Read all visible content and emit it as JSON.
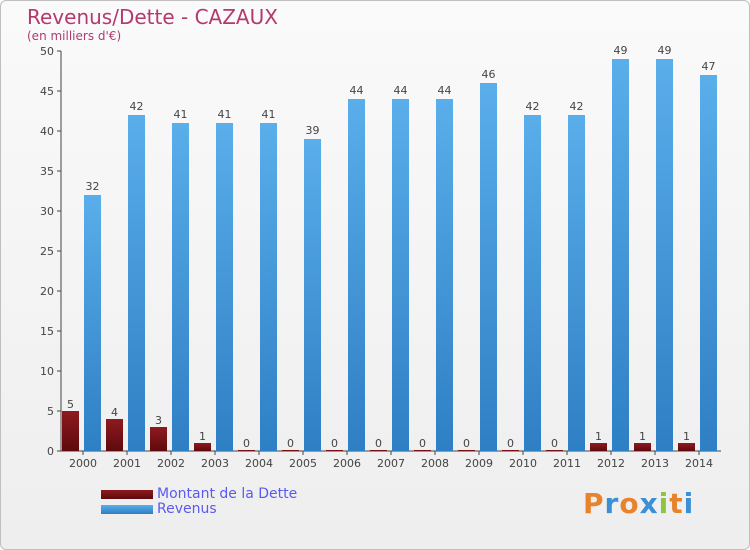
{
  "chart_data": {
    "type": "bar",
    "title": "Revenus/Dette - CAZAUX",
    "subtitle": "(en milliers d'€)",
    "categories": [
      "2000",
      "2001",
      "2002",
      "2003",
      "2004",
      "2005",
      "2006",
      "2007",
      "2008",
      "2009",
      "2010",
      "2011",
      "2012",
      "2013",
      "2014"
    ],
    "series": [
      {
        "name": "Montant de la Dette",
        "color": "#7a1016",
        "values": [
          5,
          4,
          3,
          1,
          0,
          0,
          0,
          0,
          0,
          0,
          0,
          0,
          1,
          1,
          1
        ]
      },
      {
        "name": "Revenus",
        "color": "#4ea3e6",
        "values": [
          32,
          42,
          41,
          41,
          41,
          39,
          44,
          44,
          44,
          46,
          42,
          42,
          49,
          49,
          47
        ]
      }
    ],
    "yticks": [
      0,
      5,
      10,
      15,
      20,
      25,
      30,
      35,
      40,
      45,
      50
    ],
    "ylim": [
      0,
      50
    ],
    "grid": false,
    "legend_position": "bottom-left"
  },
  "logo": {
    "text": "Proxiti",
    "letter_colors": [
      "#e8832b",
      "#3a8fd6",
      "#e8832b",
      "#3a8fd6",
      "#8cc63f",
      "#e8832b",
      "#3a8fd6"
    ]
  }
}
